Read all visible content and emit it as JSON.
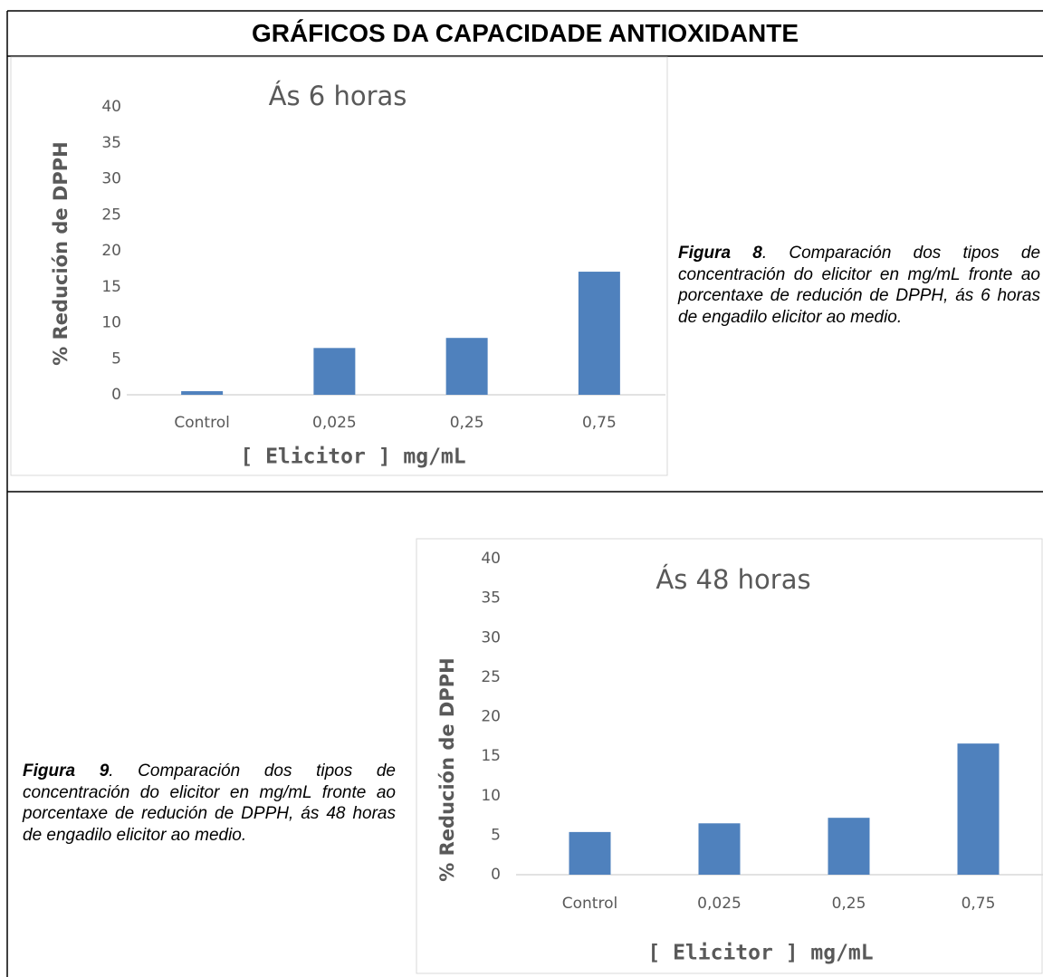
{
  "header": {
    "title": "GRÁFICOS DA CAPACIDADE ANTIOXIDANTE"
  },
  "captions": [
    {
      "label": "Figura 8",
      "text": ". Comparación dos tipos de concentración do elicitor en mg/mL fronte ao porcentaxe de redución de DPPH,  ás 6 horas de engadilo elicitor ao medio."
    },
    {
      "label": "Figura 9",
      "text": ". Comparación dos tipos de concentración do elicitor en  mg/mL fronte ao porcentaxe de redución de DPPH,  ás 48 horas de engadilo elicitor ao medio."
    }
  ],
  "chart_data": [
    {
      "type": "bar",
      "title": "Ás 6 horas",
      "x_label": "[ Elicitor ]  mg/mL",
      "y_label": "% Redución de DPPH",
      "categories": [
        "Control",
        "0,025",
        "0,25",
        "0,75"
      ],
      "values": [
        0.5,
        6.5,
        7.9,
        17.1
      ],
      "color": "#4f81bd",
      "ylim": [
        0,
        40
      ],
      "yticks": [
        0,
        5,
        10,
        15,
        20,
        25,
        30,
        35,
        40
      ],
      "grid": false
    },
    {
      "type": "bar",
      "title": "Ás 48 horas",
      "x_label": "[ Elicitor ]  mg/mL",
      "y_label": "% Redución de DPPH",
      "categories": [
        "Control",
        "0,025",
        "0,25",
        "0,75"
      ],
      "values": [
        5.4,
        6.5,
        7.2,
        16.6
      ],
      "color": "#4f81bd",
      "ylim": [
        0,
        40
      ],
      "yticks": [
        0,
        5,
        10,
        15,
        20,
        25,
        30,
        35,
        40
      ],
      "grid": false
    }
  ]
}
